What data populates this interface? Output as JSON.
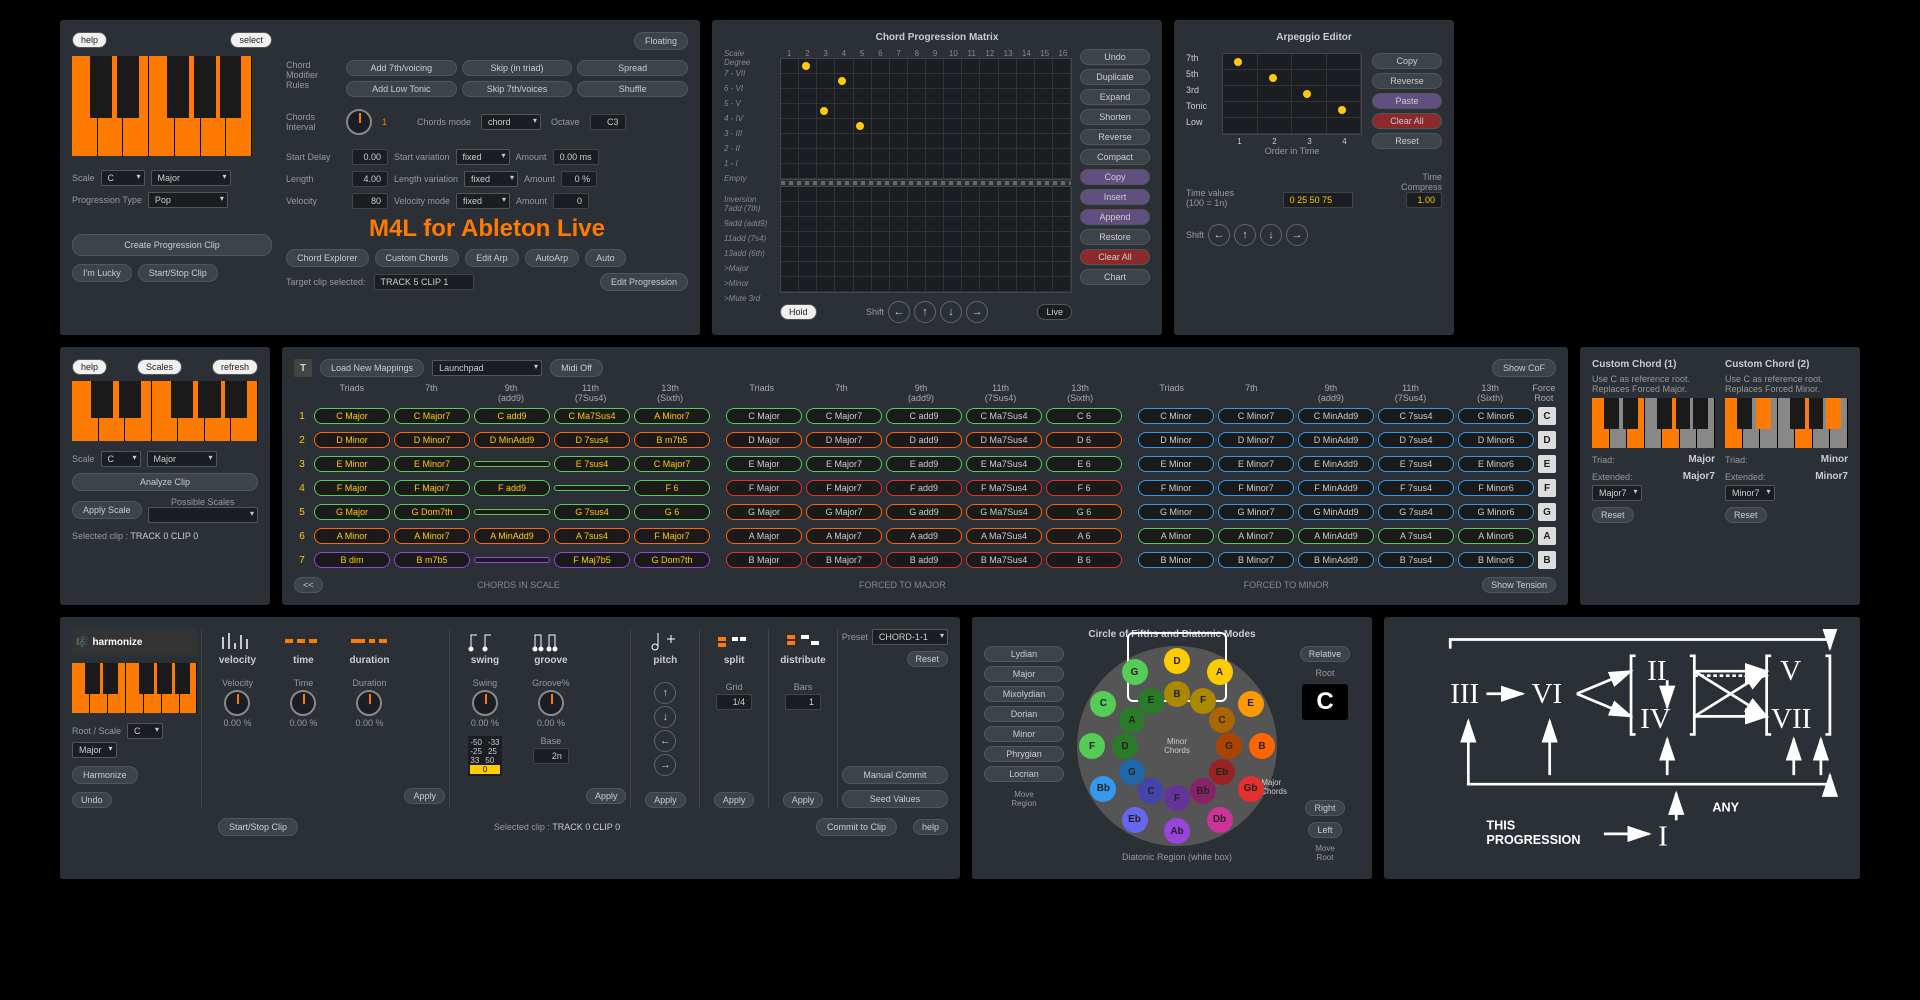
{
  "colors": {
    "orange": "#ff7a00",
    "panelBg": "#2a3035",
    "darkBg": "#1a1e22"
  },
  "topLeft": {
    "help": "help",
    "select": "select",
    "scaleLabel": "Scale",
    "scaleRoot": "C",
    "scaleType": "Major",
    "progTypeLabel": "Progression Type",
    "progType": "Pop",
    "createClip": "Create Progression Clip",
    "lucky": "I'm Lucky",
    "startStop": "Start/Stop Clip"
  },
  "chordRules": {
    "chordModLabel": "Chord\nModifier\nRules",
    "btns": [
      "Add 7th/voicing",
      "Skip (in triad)",
      "Spread",
      "Add Low Tonic",
      "Skip 7th/voices",
      "Shuffle"
    ],
    "intervalLabel": "Chords\nInterval",
    "intervalVal": "1",
    "chordsMode": "Chords mode",
    "chordsModeVal": "chord",
    "octave": "Octave",
    "octaveVal": "C3",
    "startDelay": "Start Delay",
    "startDelayVal": "0.00",
    "startVar": "Start variation",
    "startVarVal": "fixed",
    "amount": "Amount",
    "amountVal1": "0.00 ms",
    "length": "Length",
    "lengthVal": "4.00",
    "lengthVar": "Length variation",
    "lengthVarVal": "fixed",
    "amountVal2": "0 %",
    "velocity": "Velocity",
    "velocityVal": "80",
    "velMode": "Velocity mode",
    "velModeVal": "fixed",
    "amountVal3": "0",
    "title": "M4L for Ableton Live",
    "floating": "Floating",
    "chordExp": "Chord Explorer",
    "custChords": "Custom Chords",
    "editArp": "Edit Arp",
    "autoArp": "AutoArp",
    "auto": "Auto",
    "targetClip": "Target clip selected:",
    "targetClipVal": "TRACK 5 CLIP 1",
    "editProg": "Edit Progression"
  },
  "matrix": {
    "title": "Chord Progression Matrix",
    "scaleDeg": "Scale\nDegree",
    "yLabels": [
      "7 - VII",
      "6 - VI",
      "5 - V",
      "4 - IV",
      "3 - III",
      "2 - II",
      "1 - I",
      "Empty"
    ],
    "inversion": "Inversion",
    "invLabels": [
      "7add (7th)",
      "9add (add9)",
      "11add (7s4)",
      "13add (6th)",
      ">Major",
      ">Minor",
      ">Mute 3rd"
    ],
    "dots": [
      [
        1,
        0
      ],
      [
        2,
        3
      ],
      [
        3,
        1
      ],
      [
        4,
        4
      ]
    ],
    "controls": [
      "Undo",
      "Duplicate",
      "Expand",
      "Shorten",
      "Reverse",
      "Compact",
      "Copy",
      "Insert",
      "Append",
      "Restore",
      "Clear All",
      "Chart"
    ],
    "hold": "Hold",
    "shift": "Shift",
    "live": "Live"
  },
  "arp": {
    "title": "Arpeggio Editor",
    "rows": [
      "7th",
      "5th",
      "3rd",
      "Tonic",
      "Low"
    ],
    "dots": [
      [
        0,
        0
      ],
      [
        1,
        1
      ],
      [
        2,
        2
      ],
      [
        3,
        3
      ]
    ],
    "orderLabel": "Order in Time",
    "btns": [
      "Copy",
      "Reverse",
      "Paste",
      "Clear All",
      "Reset"
    ],
    "timeValLabel": "Time values\n(100 = 1n)",
    "timeVals": "0  25  50  75",
    "timeComp": "Time\nCompress",
    "timeCompVal": "1.00",
    "shift": "Shift"
  },
  "scales": {
    "help": "help",
    "scalesBtn": "Scales",
    "refresh": "refresh",
    "scaleLabel": "Scale",
    "root": "C",
    "type": "Major",
    "analyze": "Analyze Clip",
    "apply": "Apply Scale",
    "possible": "Possible Scales",
    "selectedClip": "Selected clip :",
    "selectedClipVal": "TRACK 0 CLIP 0"
  },
  "chordGrid": {
    "t": "T",
    "loadMap": "Load New Mappings",
    "controller": "Launchpad",
    "midiOff": "Midi Off",
    "showCof": "Show CoF",
    "headers": [
      "Triads",
      "7th",
      "9th\n(add9)",
      "11th\n(7Sus4)",
      "13th\n(Sixth)"
    ],
    "forceRoot": "Force\nRoot",
    "forceRoots": [
      "C",
      "D",
      "E",
      "F",
      "G",
      "A",
      "B"
    ],
    "rows": [
      {
        "n": "1",
        "scale": [
          "C Major",
          "C Major7",
          "C add9",
          "C Ma7Sus4",
          "A Minor7"
        ],
        "maj": [
          "C Major",
          "C Major7",
          "C add9",
          "C Ma7Sus4",
          "C 6"
        ],
        "min": [
          "C Minor",
          "C Minor7",
          "C MinAdd9",
          "C 7sus4",
          "C Minor6"
        ]
      },
      {
        "n": "2",
        "scale": [
          "D Minor",
          "D Minor7",
          "D MinAdd9",
          "D 7sus4",
          "B m7b5"
        ],
        "maj": [
          "D Major",
          "D Major7",
          "D add9",
          "D Ma7Sus4",
          "D 6"
        ],
        "min": [
          "D Minor",
          "D Minor7",
          "D MinAdd9",
          "D 7sus4",
          "D Minor6"
        ]
      },
      {
        "n": "3",
        "scale": [
          "E Minor",
          "E Minor7",
          "",
          "E 7sus4",
          "C Major7"
        ],
        "maj": [
          "E Major",
          "E Major7",
          "E add9",
          "E Ma7Sus4",
          "E 6"
        ],
        "min": [
          "E Minor",
          "E Minor7",
          "E MinAdd9",
          "E 7sus4",
          "E Minor6"
        ]
      },
      {
        "n": "4",
        "scale": [
          "F Major",
          "F Major7",
          "F add9",
          "",
          "F 6"
        ],
        "maj": [
          "F Major",
          "F Major7",
          "F add9",
          "F Ma7Sus4",
          "F 6"
        ],
        "min": [
          "F Minor",
          "F Minor7",
          "F MinAdd9",
          "F 7sus4",
          "F Minor6"
        ]
      },
      {
        "n": "5",
        "scale": [
          "G Major",
          "G Dom7th",
          "",
          "G 7sus4",
          "G 6"
        ],
        "maj": [
          "G Major",
          "G Major7",
          "G add9",
          "G Ma7Sus4",
          "G 6"
        ],
        "min": [
          "G Minor",
          "G Minor7",
          "G MinAdd9",
          "G 7sus4",
          "G Minor6"
        ]
      },
      {
        "n": "6",
        "scale": [
          "A Minor",
          "A Minor7",
          "A MinAdd9",
          "A 7sus4",
          "F Major7"
        ],
        "maj": [
          "A Major",
          "A Major7",
          "A add9",
          "A Ma7Sus4",
          "A 6"
        ],
        "min": [
          "A Minor",
          "A Minor7",
          "A MinAdd9",
          "A 7sus4",
          "A Minor6"
        ]
      },
      {
        "n": "7",
        "scale": [
          "B dim",
          "B m7b5",
          "",
          "F Maj7b5",
          "G Dom7th"
        ],
        "maj": [
          "B Major",
          "B Major7",
          "B add9",
          "B Ma7Sus4",
          "B 6"
        ],
        "min": [
          "B Minor",
          "B Minor7",
          "B MinAdd9",
          "B 7sus4",
          "B Minor6"
        ]
      }
    ],
    "rowColors": [
      "#55cc55",
      "#ff6600",
      "#55cc55",
      "#55cc55",
      "#55cc55",
      "#ff6600",
      "#9944dd"
    ],
    "majColors": [
      "#55cc55",
      "#ff6600",
      "#55cc55",
      "#e63030",
      "#ff6600",
      "#ff6600",
      "#e63030"
    ],
    "minColors": [
      "#3399ee",
      "#3399ee",
      "#3399ee",
      "#3399ee",
      "#3399ee",
      "#55cc55",
      "#3399ee"
    ],
    "back": "<<",
    "labels": [
      "CHORDS IN SCALE",
      "FORCED TO  MAJOR",
      "FORCED TO  MINOR"
    ],
    "showTension": "Show Tension"
  },
  "custom": {
    "t1": "Custom Chord (1)",
    "t2": "Custom Chord (2)",
    "desc1": "Use C as reference root.\nReplaces Forced Major.",
    "desc2": "Use C as reference root.\nReplaces Forced Minor.",
    "triad": "Triad:",
    "ext": "Extended:",
    "v1triad": "Major",
    "v1ext": "Major7",
    "v1sel": "Major7",
    "v2triad": "Minor",
    "v2ext": "Minor7",
    "v2sel": "Minor7",
    "reset": "Reset"
  },
  "harm": {
    "sections": [
      "harmonize",
      "velocity",
      "time",
      "duration",
      "swing",
      "groove",
      "pitch",
      "split",
      "distribute"
    ],
    "velocity": "Velocity",
    "velocityVal": "0.00 %",
    "time": "Time",
    "timeVal": "0.00 %",
    "duration": "Duration",
    "durVal": "0.00 %",
    "swing": "Swing",
    "swingVal": "0.00 %",
    "groove": "Groove%",
    "grooveVal": "0.00 %",
    "grooveGrid": [
      [
        "-50",
        "-33"
      ],
      [
        "-25",
        "25"
      ],
      [
        "33",
        "50"
      ],
      [
        "0",
        ""
      ]
    ],
    "base": "Base",
    "baseVal": "2n",
    "grid": "Grid",
    "gridVal": "1/4",
    "bars": "Bars",
    "barsVal": "1",
    "preset": "Preset",
    "presetVal": "CHORD-1-1",
    "reset": "Reset",
    "manualCommit": "Manual Commit",
    "seedVals": "Seed Values",
    "rootScale": "Root / Scale",
    "root": "C",
    "scale": "Major",
    "harmonize": "Harmonize",
    "undo": "Undo",
    "apply": "Apply",
    "startStop": "Start/Stop Clip",
    "selectedClip": "Selected clip :",
    "selectedClipVal": "TRACK 0 CLIP 0",
    "commit": "Commit to Clip",
    "help": "help"
  },
  "cof": {
    "title": "Circle of Fifths and Diatonic Modes",
    "modes": [
      "Lydian",
      "Major",
      "Mixolydian",
      "Dorian",
      "Minor",
      "Phrygian",
      "Locrian"
    ],
    "moveRegion": "Move\nRegion",
    "moveRoot": "Move\nRoot",
    "relative": "Relative",
    "root": "Root",
    "rootVal": "C",
    "right": "Right",
    "left": "Left",
    "diatonic": "Diatonic Region (white box)",
    "minorChords": "Minor\nChords",
    "majorChords": "Major\nChords",
    "outer": [
      {
        "n": "F",
        "c": "#55cc55",
        "a": 270
      },
      {
        "n": "C",
        "c": "#55cc55",
        "a": 300
      },
      {
        "n": "G",
        "c": "#55cc55",
        "a": 330
      },
      {
        "n": "D",
        "c": "#ffcc00",
        "a": 0
      },
      {
        "n": "A",
        "c": "#ffcc00",
        "a": 30
      },
      {
        "n": "E",
        "c": "#ff9900",
        "a": 60
      },
      {
        "n": "B",
        "c": "#ff6600",
        "a": 90
      },
      {
        "n": "Gb",
        "c": "#e63030",
        "a": 120
      },
      {
        "n": "Db",
        "c": "#cc3399",
        "a": 150
      },
      {
        "n": "Ab",
        "c": "#9944dd",
        "a": 180
      },
      {
        "n": "Eb",
        "c": "#6666ee",
        "a": 210
      },
      {
        "n": "Bb",
        "c": "#3399ee",
        "a": 240
      }
    ],
    "inner": [
      {
        "n": "D",
        "c": "#2a7a2a",
        "a": 270
      },
      {
        "n": "A",
        "c": "#2a7a2a",
        "a": 300
      },
      {
        "n": "E",
        "c": "#2a7a2a",
        "a": 330
      },
      {
        "n": "B",
        "c": "#aa8800",
        "a": 0
      },
      {
        "n": "F",
        "c": "#aa8800",
        "a": 30
      },
      {
        "n": "C",
        "c": "#aa6600",
        "a": 60
      },
      {
        "n": "G",
        "c": "#aa4400",
        "a": 90
      },
      {
        "n": "Eb",
        "c": "#992222",
        "a": 120
      },
      {
        "n": "Bb",
        "c": "#882266",
        "a": 150
      },
      {
        "n": "F",
        "c": "#663399",
        "a": 180
      },
      {
        "n": "C",
        "c": "#4444aa",
        "a": 210
      },
      {
        "n": "G",
        "c": "#2266aa",
        "a": 240
      }
    ]
  },
  "prog": {
    "this": "THIS\nPROGRESSION",
    "any": "ANY",
    "romans": [
      "III",
      "VI",
      "II",
      "IV",
      "V",
      "VII",
      "I"
    ]
  }
}
